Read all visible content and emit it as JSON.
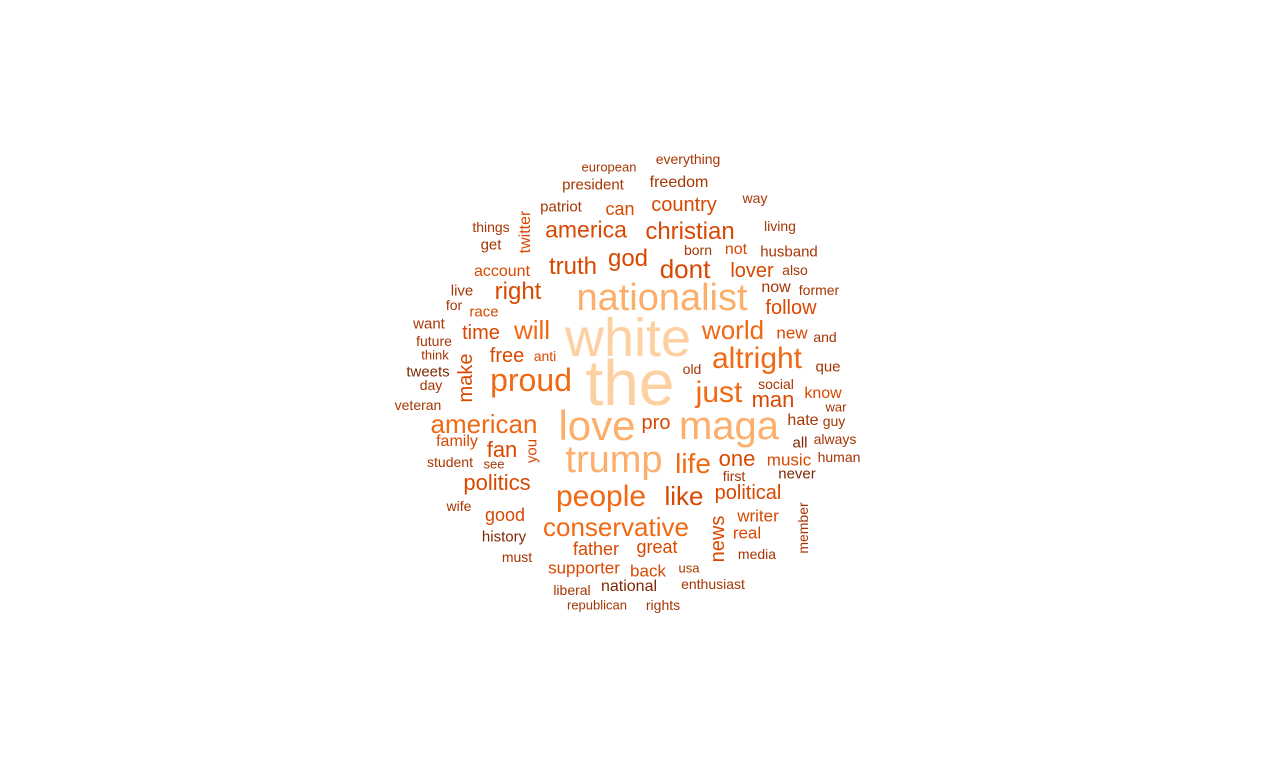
{
  "palette": {
    "lightest": "#fdd0a2",
    "light": "#fdae6b",
    "mid_light": "#fd8d3c",
    "mid": "#f16913",
    "mid_dark": "#d94801",
    "dark": "#a63603",
    "darkest": "#7f2704"
  },
  "words": [
    {
      "text": "the",
      "color": "#fdd0a2"
    },
    {
      "text": "white",
      "color": "#fdd0a2"
    },
    {
      "text": "nationalist",
      "color": "#fdae6b"
    },
    {
      "text": "love",
      "color": "#fdae6b"
    },
    {
      "text": "maga",
      "color": "#fdae6b"
    },
    {
      "text": "trump",
      "color": "#fdae6b"
    },
    {
      "text": "proud",
      "color": "#f16913"
    },
    {
      "text": "people",
      "color": "#f16913"
    },
    {
      "text": "american",
      "color": "#f16913"
    },
    {
      "text": "altright",
      "color": "#f16913"
    },
    {
      "text": "just",
      "color": "#f16913"
    },
    {
      "text": "conservative",
      "color": "#f16913"
    },
    {
      "text": "like",
      "color": "#d94801"
    },
    {
      "text": "life",
      "color": "#f16913"
    },
    {
      "text": "will",
      "color": "#f16913"
    },
    {
      "text": "world",
      "color": "#f16913"
    },
    {
      "text": "christian",
      "color": "#d94801"
    },
    {
      "text": "america",
      "color": "#d94801"
    },
    {
      "text": "dont",
      "color": "#d94801"
    },
    {
      "text": "truth",
      "color": "#d94801"
    },
    {
      "text": "god",
      "color": "#d94801"
    },
    {
      "text": "right",
      "color": "#d94801"
    },
    {
      "text": "politics",
      "color": "#d94801"
    },
    {
      "text": "political",
      "color": "#d94801"
    },
    {
      "text": "man",
      "color": "#d94801"
    },
    {
      "text": "one",
      "color": "#d94801"
    },
    {
      "text": "country",
      "color": "#d94801"
    },
    {
      "text": "fan",
      "color": "#d94801"
    },
    {
      "text": "pro",
      "color": "#d94801"
    },
    {
      "text": "time",
      "color": "#d94801"
    },
    {
      "text": "follow",
      "color": "#d94801"
    },
    {
      "text": "lover",
      "color": "#d94801"
    },
    {
      "text": "free",
      "color": "#d94801"
    },
    {
      "text": "make",
      "color": "#d94801"
    },
    {
      "text": "news",
      "color": "#d94801"
    },
    {
      "text": "father",
      "color": "#d94801"
    },
    {
      "text": "great",
      "color": "#d94801"
    },
    {
      "text": "good",
      "color": "#d94801"
    },
    {
      "text": "can",
      "color": "#d94801"
    },
    {
      "text": "writer",
      "color": "#d94801"
    },
    {
      "text": "music",
      "color": "#d94801"
    },
    {
      "text": "supporter",
      "color": "#d94801"
    },
    {
      "text": "back",
      "color": "#d94801"
    },
    {
      "text": "new",
      "color": "#d94801"
    },
    {
      "text": "real",
      "color": "#d94801"
    },
    {
      "text": "family",
      "color": "#d94801"
    },
    {
      "text": "hate",
      "color": "#a63603"
    },
    {
      "text": "freedom",
      "color": "#a63603"
    },
    {
      "text": "president",
      "color": "#a63603"
    },
    {
      "text": "patriot",
      "color": "#a63603"
    },
    {
      "text": "twitter",
      "color": "#d94801"
    },
    {
      "text": "account",
      "color": "#d94801"
    },
    {
      "text": "not",
      "color": "#d94801"
    },
    {
      "text": "husband",
      "color": "#a63603"
    },
    {
      "text": "now",
      "color": "#a63603"
    },
    {
      "text": "know",
      "color": "#d94801"
    },
    {
      "text": "que",
      "color": "#a63603"
    },
    {
      "text": "and",
      "color": "#a63603"
    },
    {
      "text": "get",
      "color": "#a63603"
    },
    {
      "text": "you",
      "color": "#d94801"
    },
    {
      "text": "national",
      "color": "#7f2704"
    },
    {
      "text": "history",
      "color": "#7f2704"
    },
    {
      "text": "never",
      "color": "#7f2704"
    },
    {
      "text": "all",
      "color": "#7f2704"
    },
    {
      "text": "want",
      "color": "#a63603"
    },
    {
      "text": "tweets",
      "color": "#7f2704"
    },
    {
      "text": "race",
      "color": "#d94801"
    },
    {
      "text": "live",
      "color": "#a63603"
    },
    {
      "text": "anti",
      "color": "#d94801"
    },
    {
      "text": "everything",
      "color": "#a63603"
    },
    {
      "text": "european",
      "color": "#a63603"
    },
    {
      "text": "way",
      "color": "#a63603"
    },
    {
      "text": "living",
      "color": "#a63603"
    },
    {
      "text": "things",
      "color": "#a63603"
    },
    {
      "text": "born",
      "color": "#a63603"
    },
    {
      "text": "also",
      "color": "#a63603"
    },
    {
      "text": "former",
      "color": "#a63603"
    },
    {
      "text": "for",
      "color": "#a63603"
    },
    {
      "text": "future",
      "color": "#a63603"
    },
    {
      "text": "think",
      "color": "#a63603"
    },
    {
      "text": "day",
      "color": "#a63603"
    },
    {
      "text": "veteran",
      "color": "#a63603"
    },
    {
      "text": "old",
      "color": "#a63603"
    },
    {
      "text": "social",
      "color": "#a63603"
    },
    {
      "text": "war",
      "color": "#a63603"
    },
    {
      "text": "guy",
      "color": "#a63603"
    },
    {
      "text": "always",
      "color": "#a63603"
    },
    {
      "text": "human",
      "color": "#a63603"
    },
    {
      "text": "student",
      "color": "#a63603"
    },
    {
      "text": "see",
      "color": "#a63603"
    },
    {
      "text": "first",
      "color": "#a63603"
    },
    {
      "text": "wife",
      "color": "#a63603"
    },
    {
      "text": "must",
      "color": "#a63603"
    },
    {
      "text": "member",
      "color": "#a63603"
    },
    {
      "text": "media",
      "color": "#a63603"
    },
    {
      "text": "usa",
      "color": "#a63603"
    },
    {
      "text": "enthusiast",
      "color": "#a63603"
    },
    {
      "text": "liberal",
      "color": "#a63603"
    },
    {
      "text": "republican",
      "color": "#a63603"
    },
    {
      "text": "rights",
      "color": "#a63603"
    }
  ]
}
